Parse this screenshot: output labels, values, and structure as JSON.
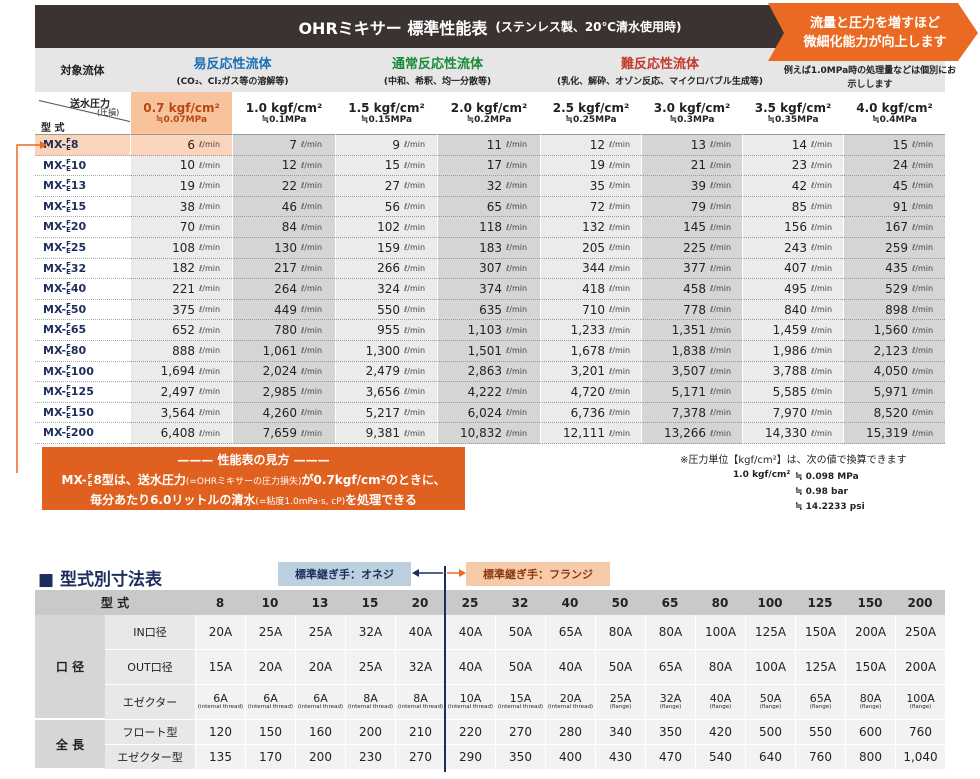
{
  "perf": {
    "title": "OHRミキサー 標準性能表",
    "title_sub": "(ステンレス製、20℃清水使用時)",
    "callout": {
      "line1": "流量と圧力を増すほど",
      "line2": "微細化能力が向上します",
      "note1": "例えば1.0MPa時の処理量などは",
      "note2": "個別にお示しします"
    },
    "fluid_label": "対象流体",
    "groups": [
      {
        "name": "易反応性流体",
        "desc": "(CO₂、Cl₂ガス等の溶解等)"
      },
      {
        "name": "通常反応性流体",
        "desc": "(中和、希釈、均一分散等)"
      },
      {
        "name": "難反応性流体",
        "desc": "(乳化、解砕、オゾン反応、マイクロバブル生成等)"
      }
    ],
    "pressure_label": "送水圧力",
    "pressure_sub": "(圧損)",
    "model_label": "型 式",
    "pressures": [
      {
        "kgf": "0.7 kgf/cm²",
        "mpa": "≒0.07MPa"
      },
      {
        "kgf": "1.0 kgf/cm²",
        "mpa": "≒0.1MPa"
      },
      {
        "kgf": "1.5 kgf/cm²",
        "mpa": "≒0.15MPa"
      },
      {
        "kgf": "2.0 kgf/cm²",
        "mpa": "≒0.2MPa"
      },
      {
        "kgf": "2.5 kgf/cm²",
        "mpa": "≒0.25MPa"
      },
      {
        "kgf": "3.0 kgf/cm²",
        "mpa": "≒0.3MPa"
      },
      {
        "kgf": "3.5 kgf/cm²",
        "mpa": "≒0.35MPa"
      },
      {
        "kgf": "4.0 kgf/cm²",
        "mpa": "≒0.4MPa"
      }
    ],
    "model_prefix": "MX-",
    "model_sup": "F",
    "model_sub": "E",
    "unit": "ℓ/min",
    "rows": [
      {
        "model": "8",
        "values": [
          "6",
          "7",
          "9",
          "11",
          "12",
          "13",
          "14",
          "15"
        ]
      },
      {
        "model": "10",
        "values": [
          "10",
          "12",
          "15",
          "17",
          "19",
          "21",
          "23",
          "24"
        ]
      },
      {
        "model": "13",
        "values": [
          "19",
          "22",
          "27",
          "32",
          "35",
          "39",
          "42",
          "45"
        ]
      },
      {
        "model": "15",
        "values": [
          "38",
          "46",
          "56",
          "65",
          "72",
          "79",
          "85",
          "91"
        ]
      },
      {
        "model": "20",
        "values": [
          "70",
          "84",
          "102",
          "118",
          "132",
          "145",
          "156",
          "167"
        ]
      },
      {
        "model": "25",
        "values": [
          "108",
          "130",
          "159",
          "183",
          "205",
          "225",
          "243",
          "259"
        ]
      },
      {
        "model": "32",
        "values": [
          "182",
          "217",
          "266",
          "307",
          "344",
          "377",
          "407",
          "435"
        ]
      },
      {
        "model": "40",
        "values": [
          "221",
          "264",
          "324",
          "374",
          "418",
          "458",
          "495",
          "529"
        ]
      },
      {
        "model": "50",
        "values": [
          "375",
          "449",
          "550",
          "635",
          "710",
          "778",
          "840",
          "898"
        ]
      },
      {
        "model": "65",
        "values": [
          "652",
          "780",
          "955",
          "1,103",
          "1,233",
          "1,351",
          "1,459",
          "1,560"
        ]
      },
      {
        "model": "80",
        "values": [
          "888",
          "1,061",
          "1,300",
          "1,501",
          "1,678",
          "1,838",
          "1,986",
          "2,123"
        ]
      },
      {
        "model": "100",
        "values": [
          "1,694",
          "2,024",
          "2,479",
          "2,863",
          "3,201",
          "3,507",
          "3,788",
          "4,050"
        ]
      },
      {
        "model": "125",
        "values": [
          "2,497",
          "2,985",
          "3,656",
          "4,222",
          "4,720",
          "5,171",
          "5,585",
          "5,971"
        ]
      },
      {
        "model": "150",
        "values": [
          "3,564",
          "4,260",
          "5,217",
          "6,024",
          "6,736",
          "7,378",
          "7,970",
          "8,520"
        ]
      },
      {
        "model": "200",
        "values": [
          "6,408",
          "7,659",
          "9,381",
          "10,832",
          "12,111",
          "13,266",
          "14,330",
          "15,319"
        ]
      }
    ],
    "note": {
      "heading": "性能表の見方",
      "line1": [
        "MX-",
        "F",
        "E",
        "8型は、送水圧力",
        "(=OHRミキサーの圧力損失)",
        "が0.7kgf/cm²のときに、"
      ],
      "line2": [
        "毎分あたり6.0リットルの清水",
        "(=粘度1.0mPa·s, cP)",
        "を処理できる"
      ]
    },
    "conversion": {
      "heading": "※圧力単位【kgf/cm²】は、次の値で換算できます",
      "base": "1.0 kgf/cm²",
      "eq": [
        "≒ 0.098 MPa",
        "≒ 0.98 bar",
        "≒ 14.2233 psi"
      ]
    }
  },
  "dims": {
    "title": "■ 型式別寸法表",
    "tag_left": "標準継ぎ手：オネジ",
    "tag_right": "標準継ぎ手：フランジ",
    "model_label": "型 式",
    "sizes": [
      "8",
      "10",
      "13",
      "15",
      "20",
      "25",
      "32",
      "40",
      "50",
      "65",
      "80",
      "100",
      "125",
      "150",
      "200"
    ],
    "groups": [
      {
        "name": "口 径",
        "rows": [
          {
            "name": "IN口径",
            "values": [
              "20A",
              "25A",
              "25A",
              "32A",
              "40A",
              "40A",
              "50A",
              "65A",
              "80A",
              "80A",
              "100A",
              "125A",
              "150A",
              "200A",
              "250A"
            ]
          },
          {
            "name": "OUT口径",
            "values": [
              "15A",
              "20A",
              "20A",
              "25A",
              "32A",
              "40A",
              "50A",
              "40A",
              "50A",
              "65A",
              "80A",
              "100A",
              "125A",
              "150A",
              "200A"
            ]
          },
          {
            "name": "エゼクター",
            "values": [
              {
                "size": "6A",
                "note": "(internal thread)"
              },
              {
                "size": "6A",
                "note": "(internal thread)"
              },
              {
                "size": "6A",
                "note": "(internal thread)"
              },
              {
                "size": "8A",
                "note": "(internal thread)"
              },
              {
                "size": "8A",
                "note": "(internal thread)"
              },
              {
                "size": "10A",
                "note": "(internal thread)"
              },
              {
                "size": "15A",
                "note": "(internal thread)"
              },
              {
                "size": "20A",
                "note": "(internal thread)"
              },
              {
                "size": "25A",
                "note": "(flange)"
              },
              {
                "size": "32A",
                "note": "(flange)"
              },
              {
                "size": "40A",
                "note": "(flange)"
              },
              {
                "size": "50A",
                "note": "(flange)"
              },
              {
                "size": "65A",
                "note": "(flange)"
              },
              {
                "size": "80A",
                "note": "(flange)"
              },
              {
                "size": "100A",
                "note": "(flange)"
              }
            ]
          }
        ]
      },
      {
        "name": "全 長",
        "rows": [
          {
            "name": "フロート型",
            "values": [
              "120",
              "150",
              "160",
              "200",
              "210",
              "220",
              "270",
              "280",
              "340",
              "350",
              "420",
              "500",
              "550",
              "600",
              "760"
            ]
          },
          {
            "name": "エゼクター型",
            "values": [
              "135",
              "170",
              "200",
              "230",
              "270",
              "290",
              "350",
              "400",
              "430",
              "470",
              "540",
              "640",
              "760",
              "800",
              "1,040"
            ]
          }
        ]
      }
    ]
  }
}
